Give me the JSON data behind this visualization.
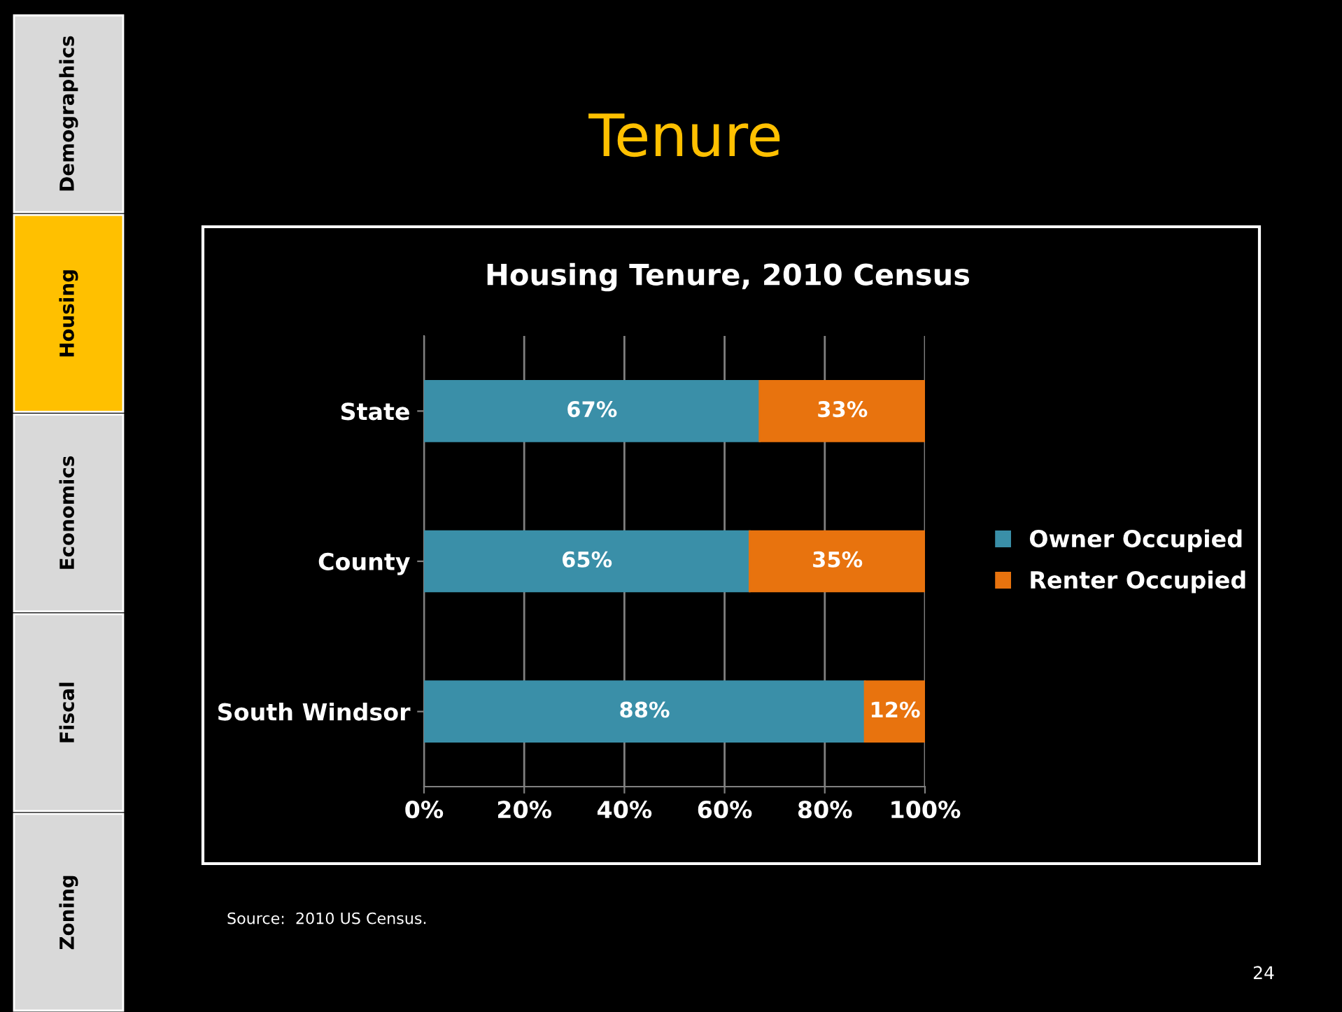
{
  "chart_data": {
    "type": "bar",
    "orientation": "horizontal",
    "stacked": true,
    "title": "Tenure",
    "subtitle": "Housing Tenure, 2010 Census",
    "categories": [
      "State",
      "County",
      "South Windsor"
    ],
    "series": [
      {
        "name": "Owner Occupied",
        "color": "#3a8fa8",
        "values": [
          67,
          65,
          88
        ],
        "value_labels": [
          "67%",
          "65%",
          "88%"
        ]
      },
      {
        "name": "Renter Occupied",
        "color": "#e8730e",
        "values": [
          33,
          35,
          12
        ],
        "value_labels": [
          "33%",
          "35%",
          "12%"
        ]
      }
    ],
    "xlim": [
      0,
      100
    ],
    "xticks": [
      {
        "value": 0,
        "label": "0%"
      },
      {
        "value": 20,
        "label": "20%"
      },
      {
        "value": 40,
        "label": "40%"
      },
      {
        "value": 60,
        "label": "60%"
      },
      {
        "value": 80,
        "label": "80%"
      },
      {
        "value": 100,
        "label": "100%"
      }
    ],
    "grid": "x",
    "legend": "right",
    "annotations": [
      "Source:  2010 US Census.",
      "24",
      "Demographics",
      "Housing",
      "Economics",
      "Fiscal",
      "Zoning"
    ]
  }
}
